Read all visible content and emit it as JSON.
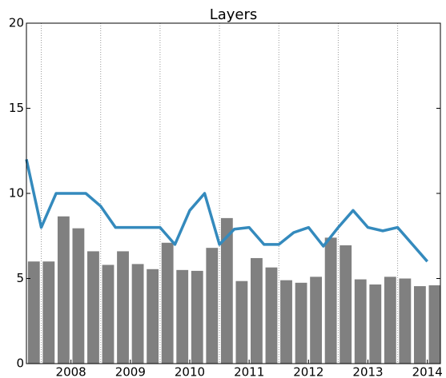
{
  "chart_data": {
    "type": "bar+line",
    "title": "Layers",
    "xlim": [
      2007.25,
      2014.22
    ],
    "xticks": [
      2008,
      2009,
      2010,
      2011,
      2012,
      2013,
      2014
    ],
    "x_minor_ticks": [
      2007.5,
      2008.5,
      2009.5,
      2010.5,
      2011.5,
      2012.5,
      2013.5
    ],
    "ylim": [
      0,
      20
    ],
    "yticks": [
      0,
      5,
      10,
      15,
      20
    ],
    "grid": true,
    "series": [
      {
        "type": "bar",
        "color": "#808080",
        "x": [
          2007.375,
          2007.625,
          2007.875,
          2008.125,
          2008.375,
          2008.625,
          2008.875,
          2009.125,
          2009.375,
          2009.625,
          2009.875,
          2010.125,
          2010.375,
          2010.625,
          2010.875,
          2011.125,
          2011.375,
          2011.625,
          2011.875,
          2012.125,
          2012.375,
          2012.625,
          2012.875,
          2013.125,
          2013.375,
          2013.625,
          2013.875,
          2014.125
        ],
        "values": [
          6.0,
          6.0,
          8.65,
          7.95,
          6.6,
          5.8,
          6.6,
          5.85,
          5.55,
          7.1,
          5.5,
          5.45,
          6.8,
          8.55,
          4.85,
          6.2,
          5.65,
          4.9,
          4.75,
          5.1,
          7.4,
          6.95,
          4.95,
          4.65,
          5.1,
          5.0,
          4.55,
          4.6
        ]
      },
      {
        "type": "line",
        "color": "#348abd",
        "x": [
          2007.25,
          2007.5,
          2007.75,
          2008.0,
          2008.25,
          2008.5,
          2008.75,
          2009.0,
          2009.25,
          2009.5,
          2009.75,
          2010.0,
          2010.25,
          2010.5,
          2010.75,
          2011.0,
          2011.25,
          2011.5,
          2011.75,
          2012.0,
          2012.25,
          2012.5,
          2012.75,
          2013.0,
          2013.25,
          2013.5,
          2013.75,
          2014.0
        ],
        "values": [
          12,
          8,
          10,
          10,
          10,
          9.25,
          8,
          8,
          8,
          8,
          7,
          9,
          10,
          7,
          7.9,
          8,
          7,
          7,
          7.7,
          8,
          6.9,
          8,
          9,
          8,
          7.8,
          8,
          7,
          6.0
        ]
      }
    ]
  }
}
